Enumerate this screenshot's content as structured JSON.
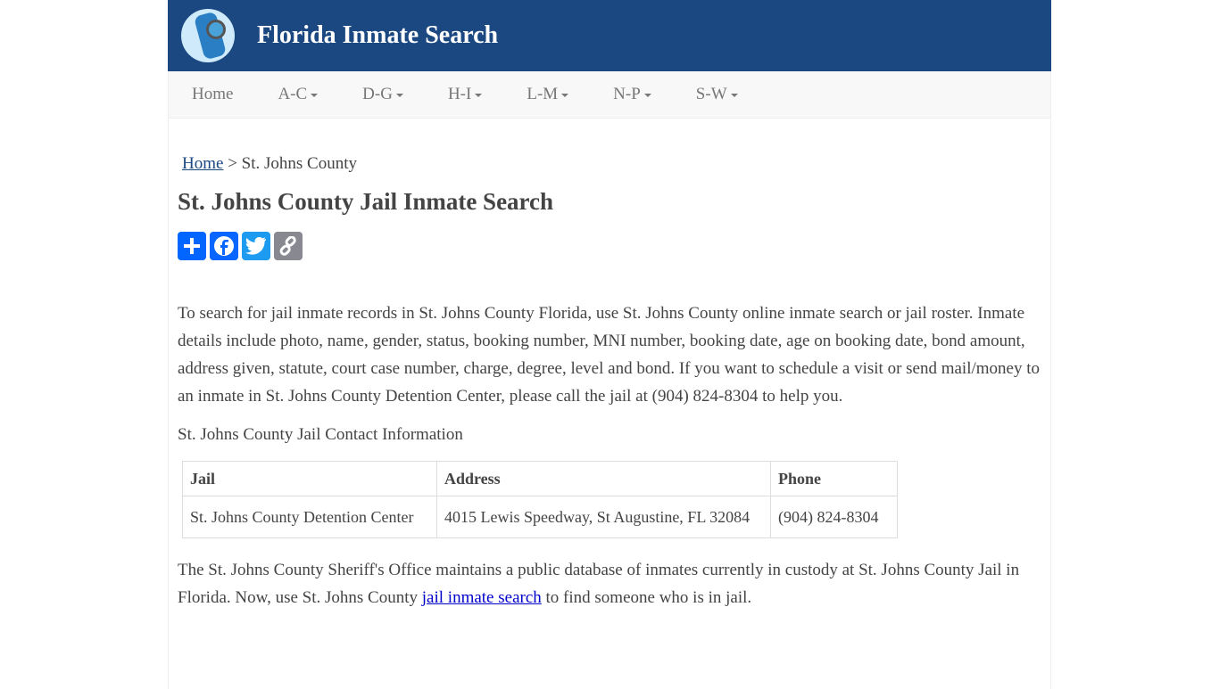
{
  "site": {
    "title": "Florida Inmate Search"
  },
  "nav": [
    "Home",
    "A-C",
    "D-G",
    "H-I",
    "L-M",
    "N-P",
    "S-W"
  ],
  "breadcrumb": {
    "home": "Home",
    "current": " > St. Johns County"
  },
  "page_title": "St. Johns County Jail Inmate Search",
  "share": [
    "share-plus-icon",
    "facebook-icon",
    "twitter-icon",
    "copy-link-icon"
  ],
  "intro": "To search for jail inmate records in St. Johns County Florida, use St. Johns County online inmate search or jail roster. Inmate details include photo, name, gender, status, booking number, MNI number, booking date, age on booking date, bond amount, address given, statute, court case number, charge, degree, level and bond. If you want to schedule a visit or send mail/money to an inmate in St. Johns County Detention Center, please call the jail at (904) 824-8304 to help you.",
  "contact_heading": "St. Johns County Jail Contact Information",
  "table": {
    "headers": [
      "Jail",
      "Address",
      "Phone"
    ],
    "row": [
      "St. Johns County Detention Center",
      "4015 Lewis Speedway, St Augustine, FL 32084",
      "(904) 824-8304"
    ]
  },
  "outro": {
    "before": "The St. Johns County Sheriff's Office maintains a public database of inmates currently in custody at St. Johns County Jail in Florida. Now, use St. Johns County ",
    "link": "jail inmate search",
    "after": " to find someone who is in jail."
  }
}
